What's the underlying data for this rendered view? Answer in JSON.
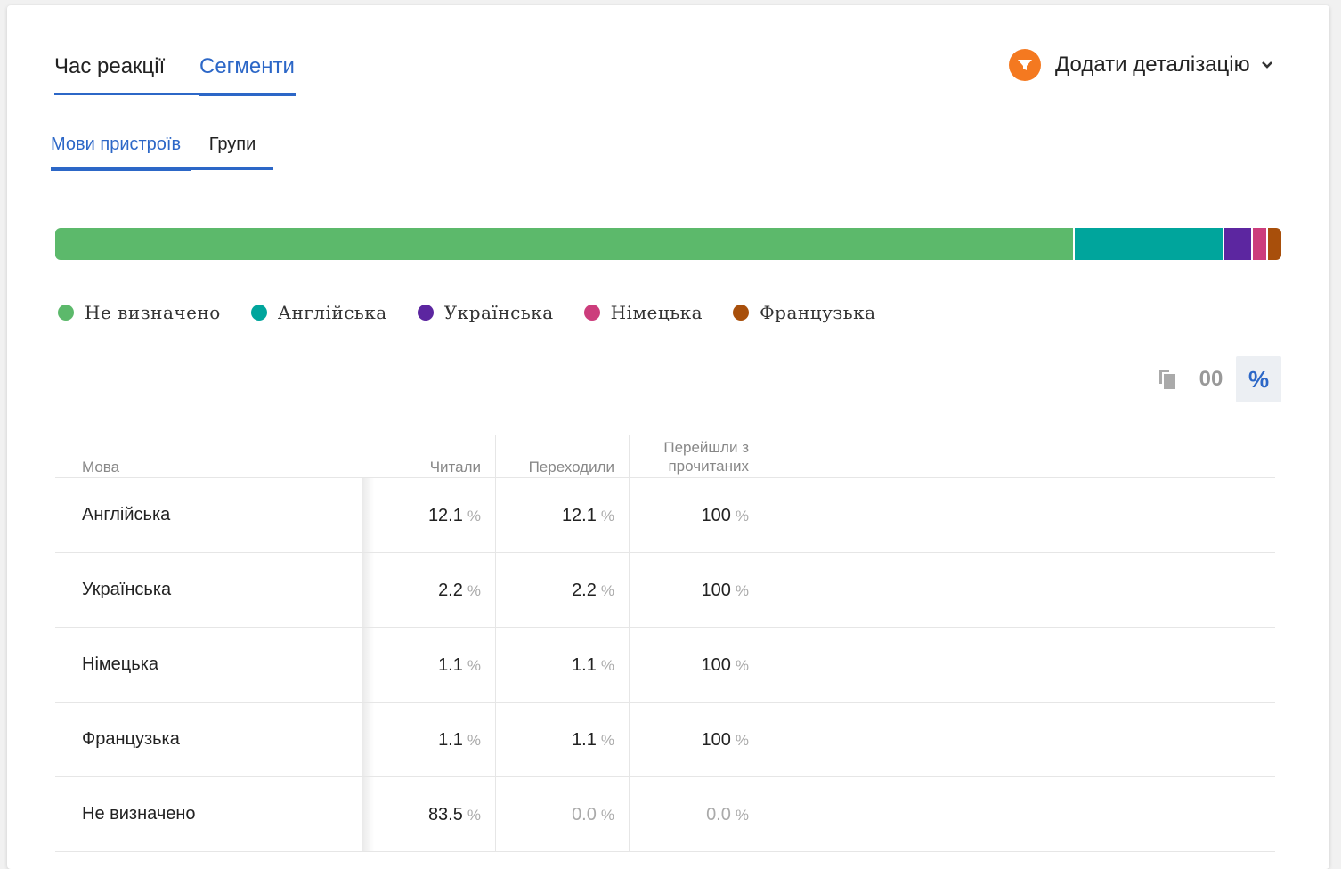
{
  "main_tabs": [
    {
      "label": "Час реакції",
      "active": false
    },
    {
      "label": "Сегменти",
      "active": true
    }
  ],
  "drilldown": {
    "label": "Додати деталізацію",
    "icon": "filter-icon",
    "accent": "#f47920"
  },
  "sub_tabs": [
    {
      "label": "Мови пристроїв",
      "active": true
    },
    {
      "label": "Групи",
      "active": false
    }
  ],
  "chart_data": {
    "type": "bar",
    "stacked": true,
    "orientation": "horizontal",
    "series": [
      {
        "name": "Не визначено",
        "value": 83.5,
        "color": "#5cb96b"
      },
      {
        "name": "Англійська",
        "value": 12.1,
        "color": "#00a59c"
      },
      {
        "name": "Українська",
        "value": 2.2,
        "color": "#5c26a0"
      },
      {
        "name": "Німецька",
        "value": 1.1,
        "color": "#cc3d7c"
      },
      {
        "name": "Французька",
        "value": 1.1,
        "color": "#a84f0b"
      }
    ]
  },
  "view_toggle": {
    "abs_label": "00",
    "pct_label": "%",
    "selected": "pct"
  },
  "table": {
    "columns": {
      "lang": "Мова",
      "read": "Читали",
      "clicked": "Переходили",
      "conv_line1": "Перейшли з",
      "conv_line2": "прочитаних"
    },
    "unit": "%",
    "rows": [
      {
        "lang": "Англійська",
        "read": "12.1",
        "clicked": "12.1",
        "conv": "100"
      },
      {
        "lang": "Українська",
        "read": "2.2",
        "clicked": "2.2",
        "conv": "100"
      },
      {
        "lang": "Німецька",
        "read": "1.1",
        "clicked": "1.1",
        "conv": "100"
      },
      {
        "lang": "Французька",
        "read": "1.1",
        "clicked": "1.1",
        "conv": "100"
      },
      {
        "lang": "Не визначено",
        "read": "83.5",
        "clicked": "0.0",
        "conv": "0.0"
      }
    ]
  }
}
